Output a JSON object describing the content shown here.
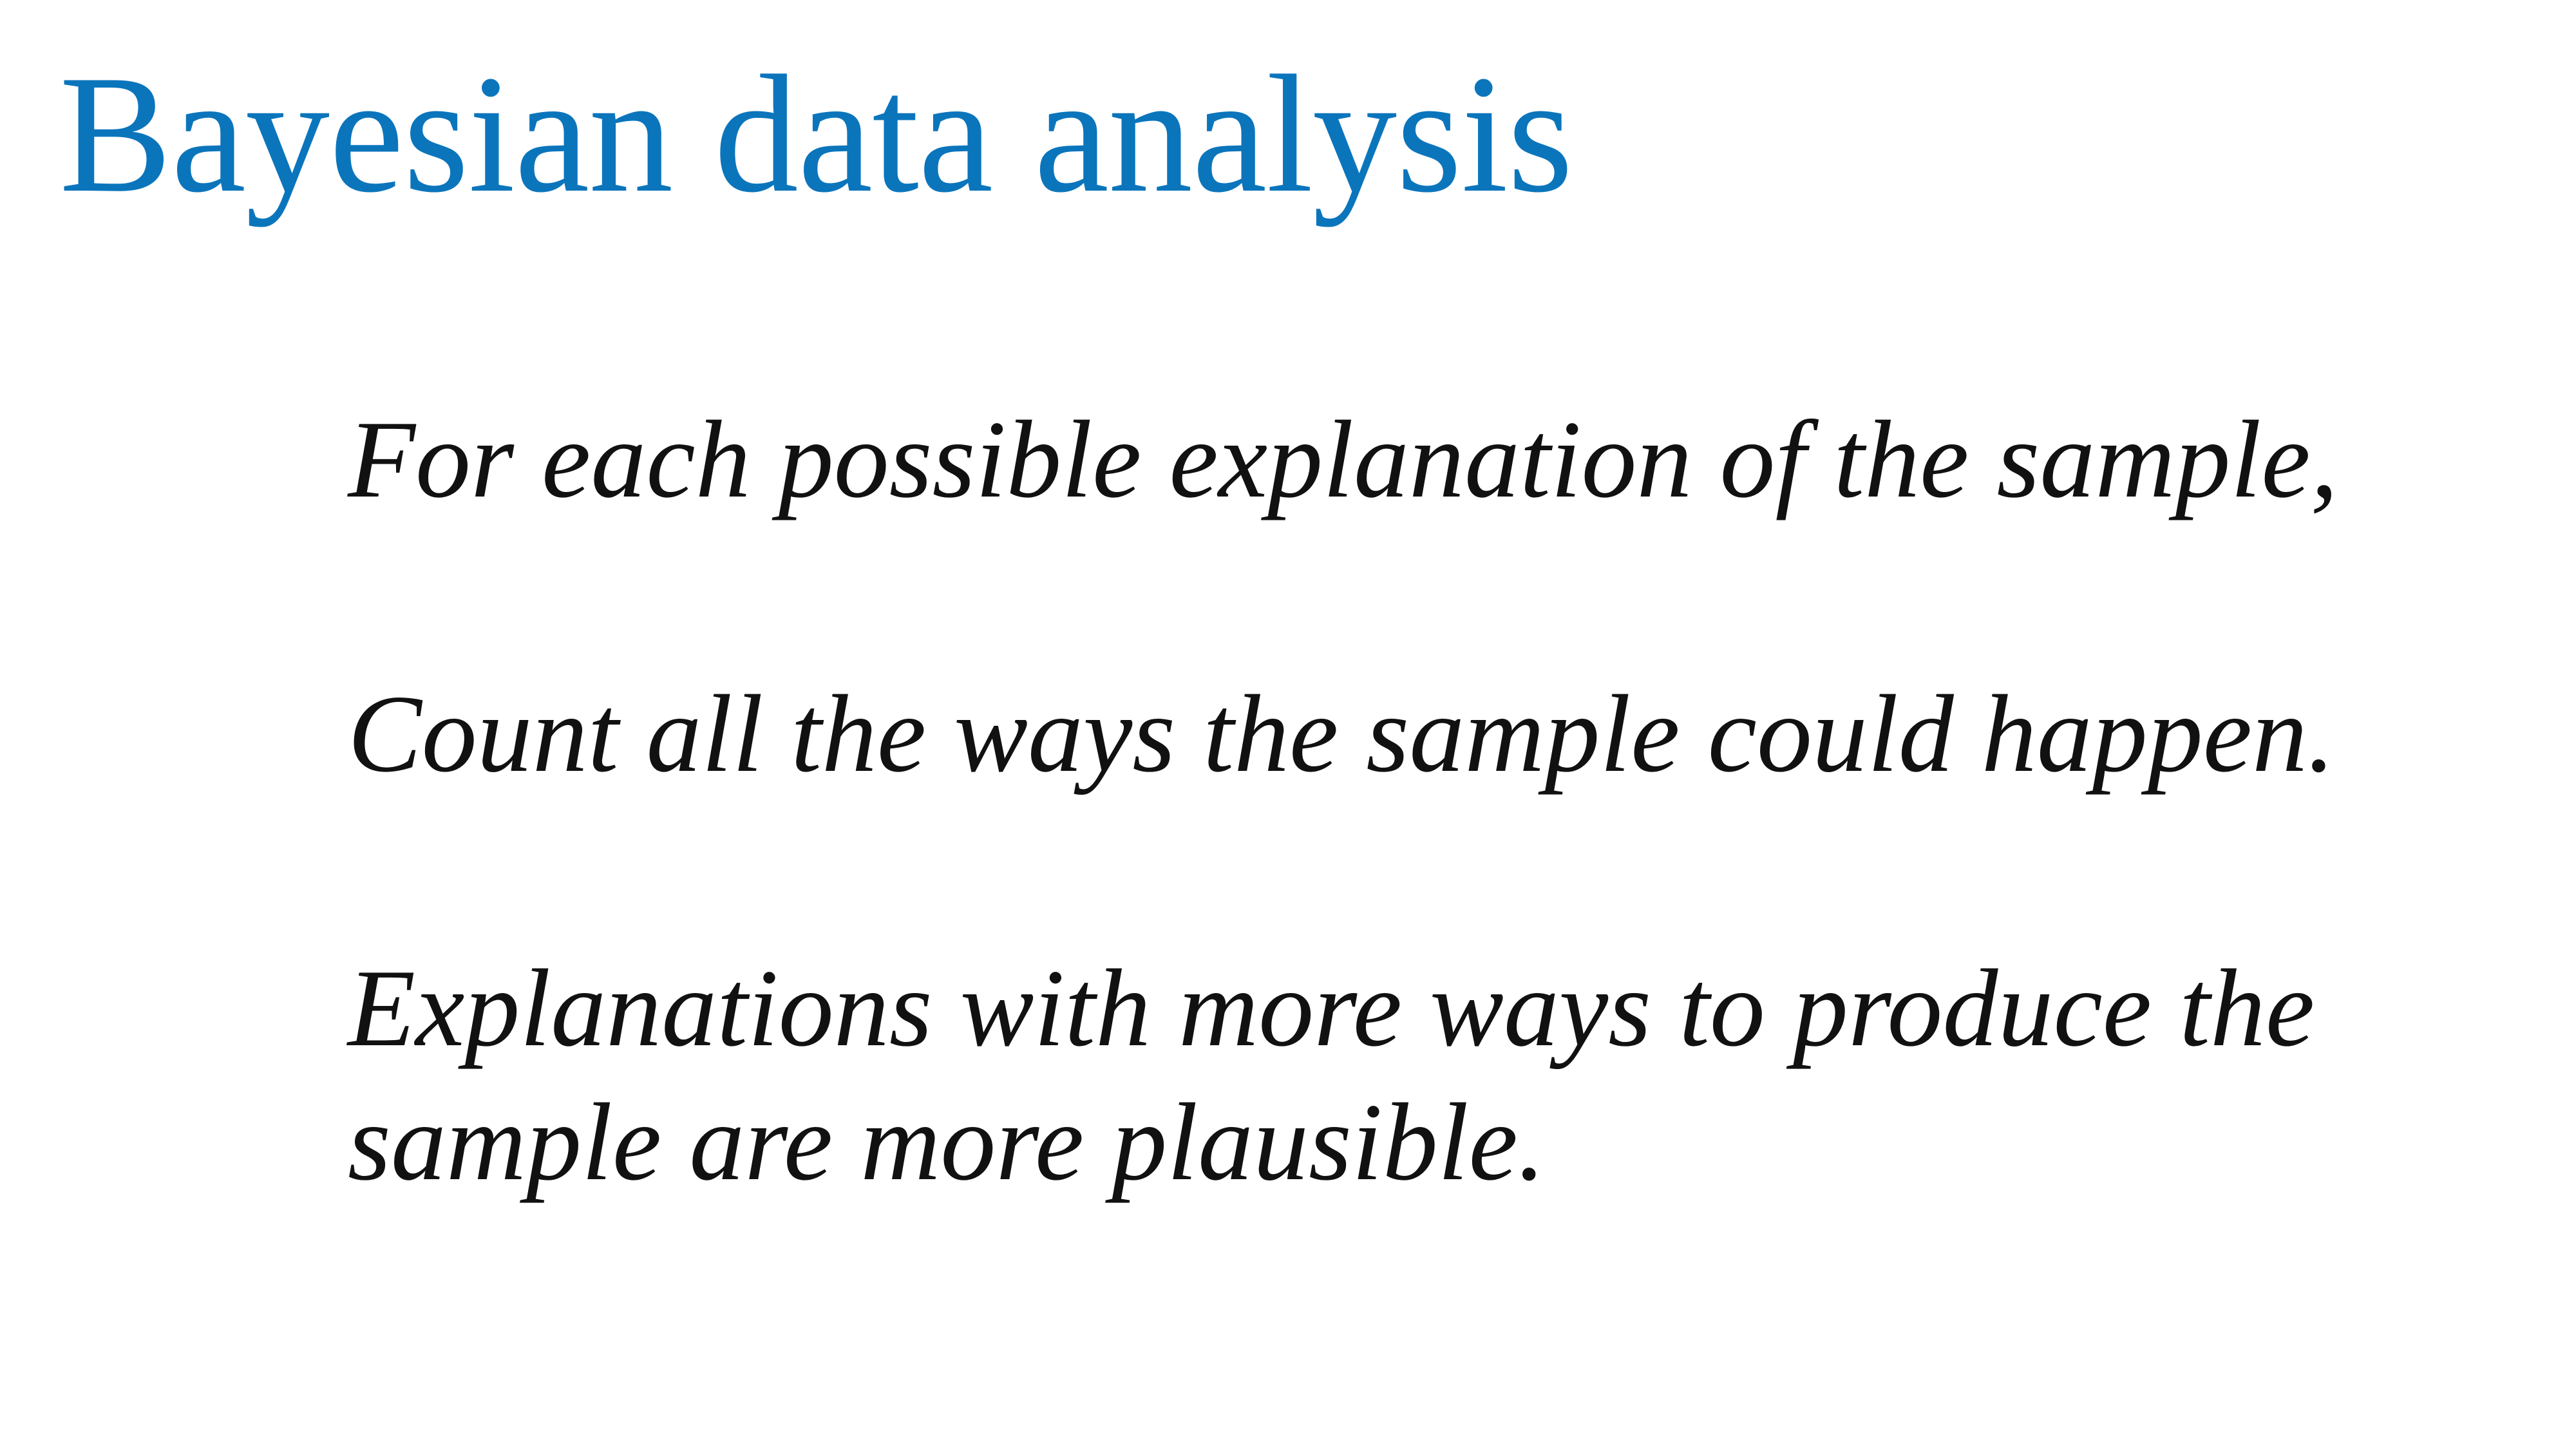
{
  "slide": {
    "title": "Bayesian data analysis",
    "colors": {
      "title": "#0B75BC",
      "body_text": "#111111",
      "background": "#ffffff"
    },
    "points": [
      "For each possible explanation of the sample,",
      "Count all the ways the sample could happen.",
      "Explanations with more ways to produce the sample are more plausible."
    ]
  }
}
